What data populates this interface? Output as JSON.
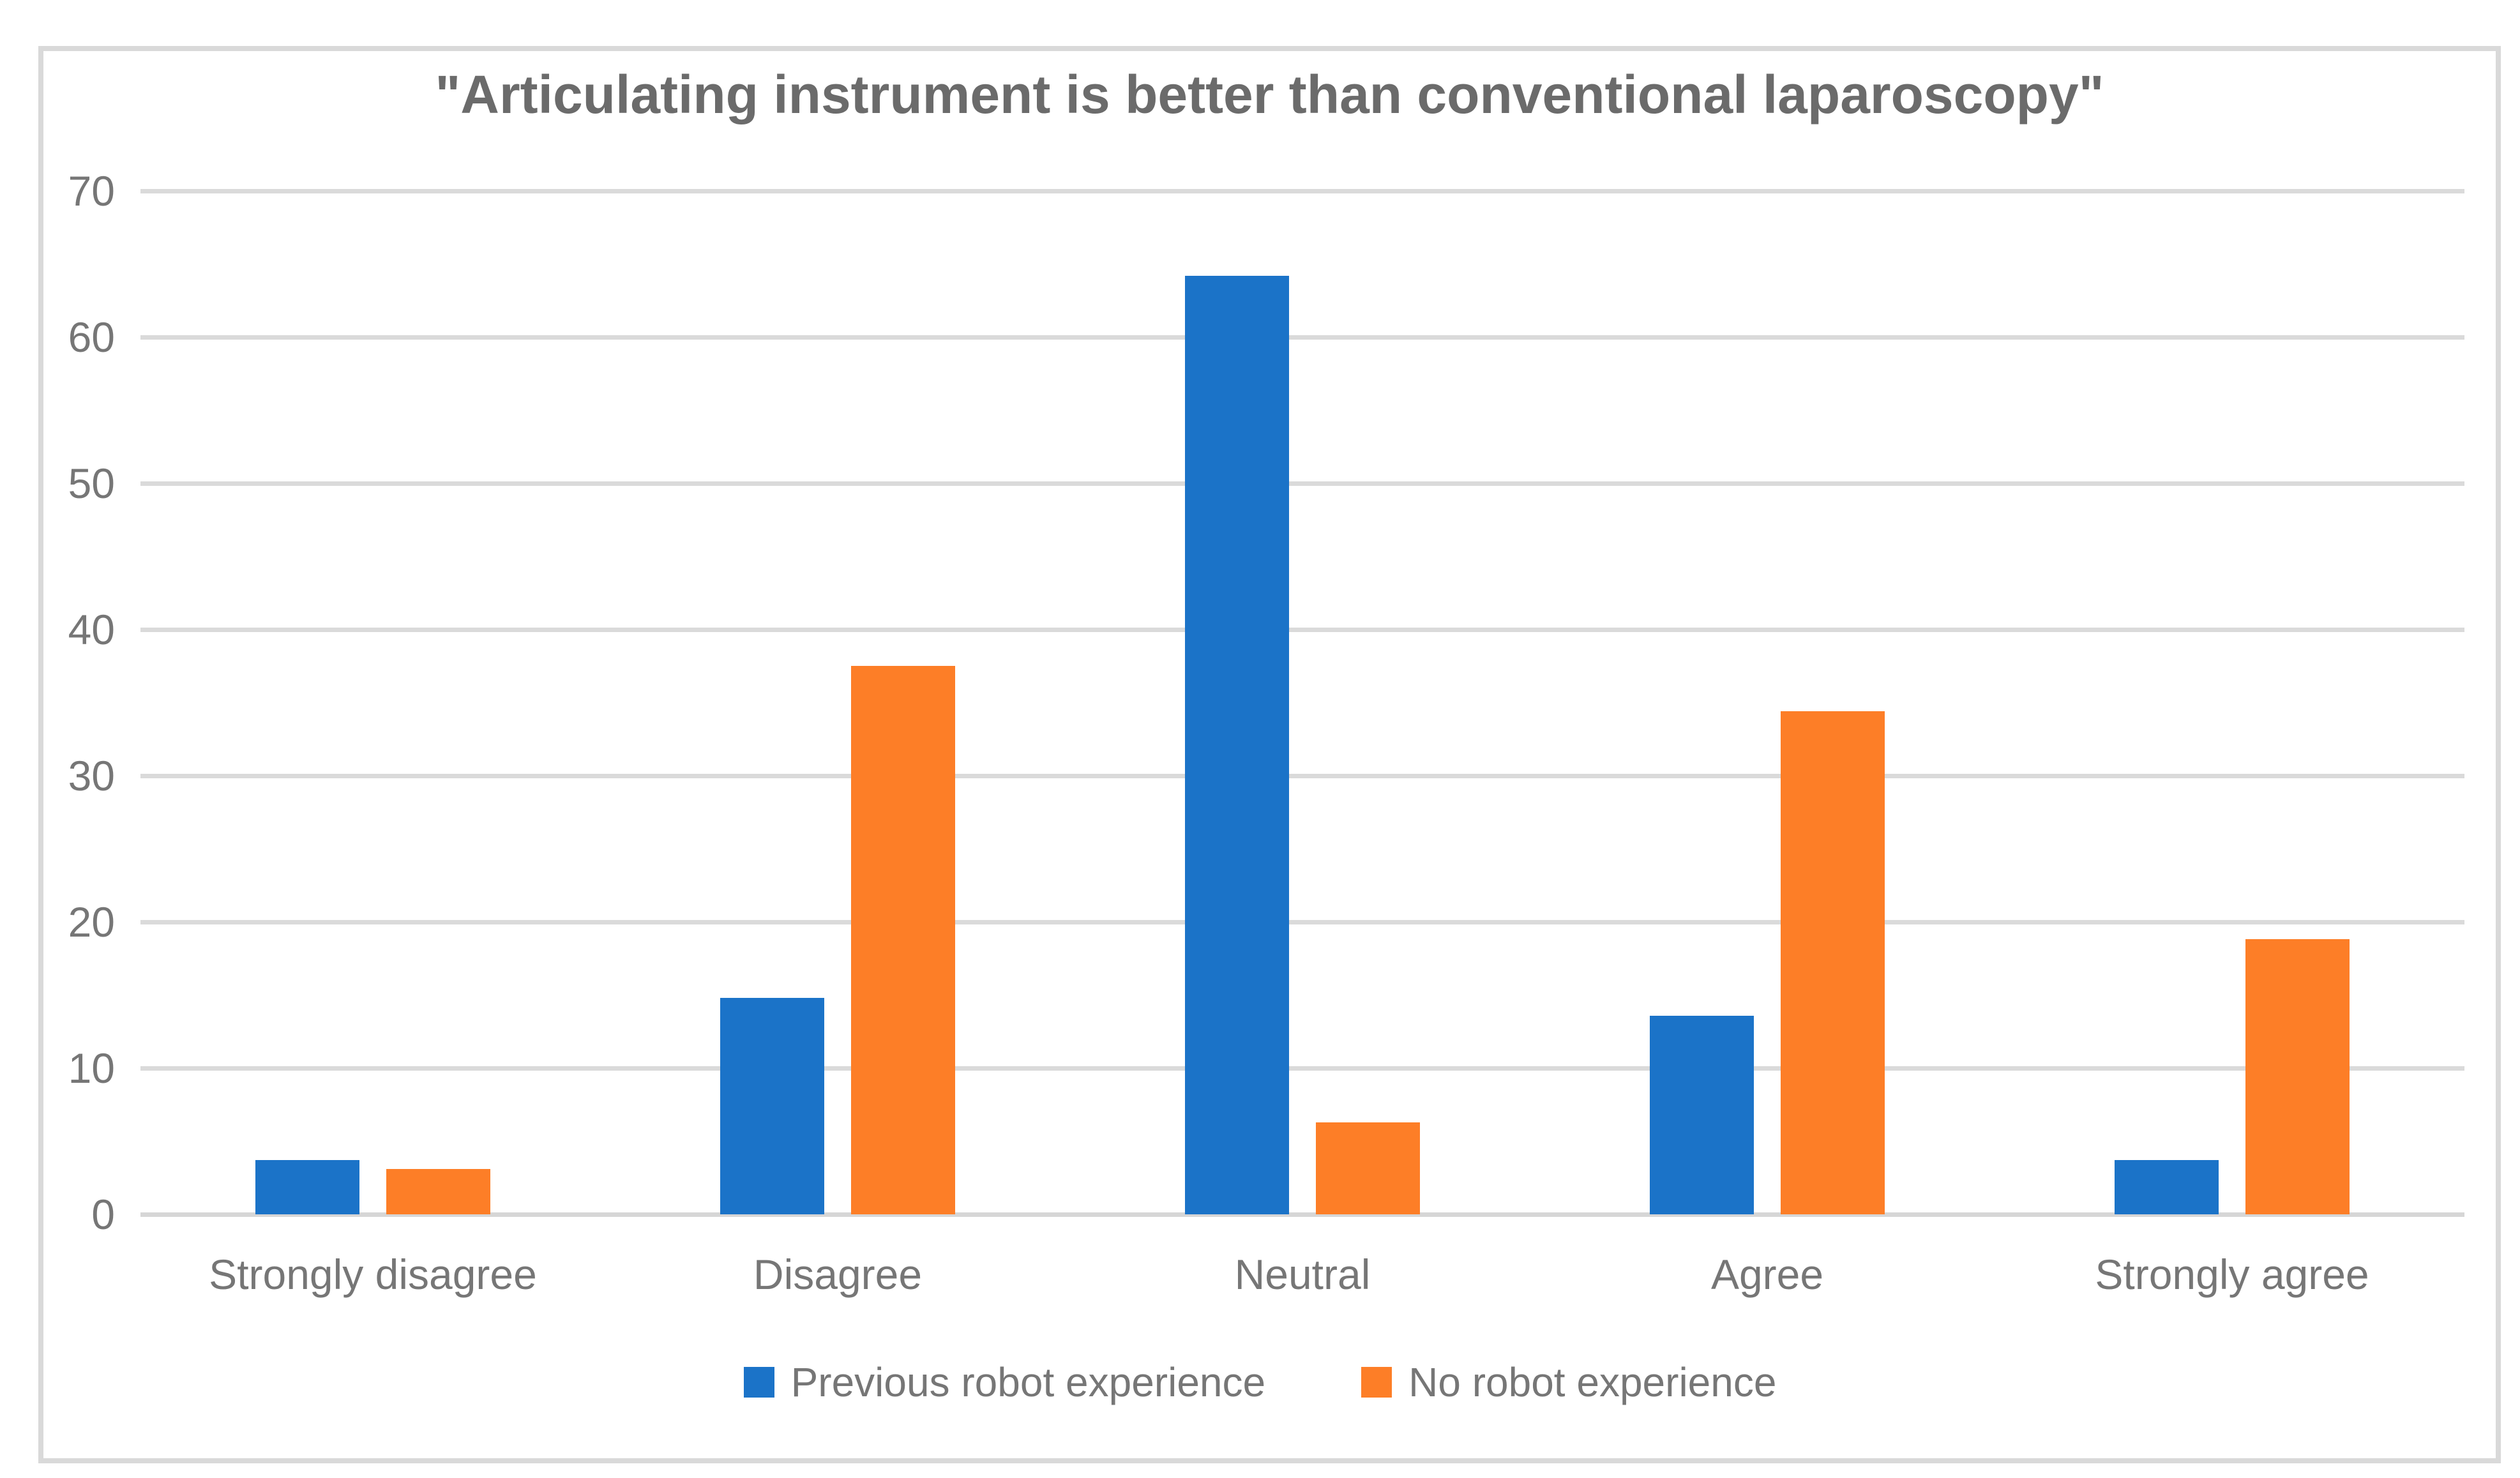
{
  "chart_data": {
    "type": "bar",
    "title": "\"Articulating instrument is better than conventional laparoscopy\"",
    "categories": [
      "Strongly disagree",
      "Disagree",
      "Neutral",
      "Agree",
      "Strongly agree"
    ],
    "series": [
      {
        "name": "Previous robot experience",
        "color": "#1B73C8",
        "values": [
          3.7,
          14.8,
          64.2,
          13.6,
          3.7
        ]
      },
      {
        "name": "No robot experience",
        "color": "#FD7E27",
        "values": [
          3.1,
          37.5,
          6.3,
          34.4,
          18.8
        ]
      }
    ],
    "xlabel": "",
    "ylabel": "",
    "ylim": [
      0,
      70
    ],
    "ytick_step": 10,
    "grid": true,
    "gridline_color": "#DADADA",
    "text_color": "#767676",
    "title_color": "#6B6B6B",
    "legend_position": "bottom"
  }
}
